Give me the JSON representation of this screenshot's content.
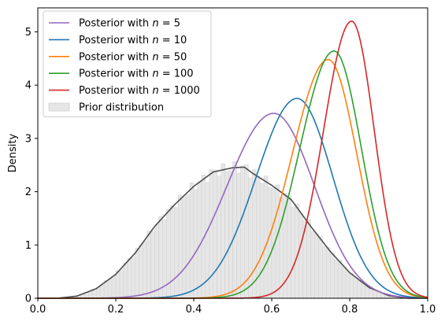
{
  "chart_data": {
    "type": "line",
    "title": "",
    "xlabel": "",
    "ylabel": "Density",
    "xlim": [
      0.0,
      1.0
    ],
    "ylim": [
      0,
      5.45
    ],
    "xticks": [
      0.0,
      0.2,
      0.4,
      0.6,
      0.8,
      1.0
    ],
    "xtick_labels": [
      "0.0",
      "0.2",
      "0.4",
      "0.6",
      "0.8",
      "1.0"
    ],
    "yticks": [
      0,
      1,
      2,
      3,
      4,
      5
    ],
    "ytick_labels": [
      "0",
      "1",
      "2",
      "3",
      "4",
      "5"
    ],
    "grid": false,
    "legend_position": "top-left",
    "series": [
      {
        "name": "Posterior with n = 5",
        "legend_prefix": "Posterior with ",
        "legend_var": "n",
        "legend_suffix": " = 5",
        "color": "#9467bd",
        "mode": 0.605,
        "peak": 3.47,
        "sigma_left": 0.12,
        "sigma_right": 0.105
      },
      {
        "name": "Posterior with n = 10",
        "legend_prefix": "Posterior with ",
        "legend_var": "n",
        "legend_suffix": " = 10",
        "color": "#1f77b4",
        "mode": 0.665,
        "peak": 3.75,
        "sigma_left": 0.105,
        "sigma_right": 0.092
      },
      {
        "name": "Posterior with n = 50",
        "legend_prefix": "Posterior with ",
        "legend_var": "n",
        "legend_suffix": " = 50",
        "color": "#ff7f0e",
        "mode": 0.745,
        "peak": 4.48,
        "sigma_left": 0.092,
        "sigma_right": 0.073
      },
      {
        "name": "Posterior with n = 100",
        "legend_prefix": "Posterior with ",
        "legend_var": "n",
        "legend_suffix": " = 100",
        "color": "#2ca02c",
        "mode": 0.76,
        "peak": 4.64,
        "sigma_left": 0.088,
        "sigma_right": 0.07
      },
      {
        "name": "Posterior with n = 1000",
        "legend_prefix": "Posterior with ",
        "legend_var": "n",
        "legend_suffix": " = 1000",
        "color": "#d62728",
        "mode": 0.805,
        "peak": 5.2,
        "sigma_left": 0.072,
        "sigma_right": 0.058
      }
    ],
    "prior": {
      "name": "Prior distribution",
      "fill_color": "#e6e6e6",
      "edge_color": "#d0d0d0",
      "curve_color": "#4d4d4d",
      "curve_points": [
        [
          0.0,
          0.0
        ],
        [
          0.05,
          0.0
        ],
        [
          0.1,
          0.04
        ],
        [
          0.15,
          0.18
        ],
        [
          0.2,
          0.45
        ],
        [
          0.25,
          0.85
        ],
        [
          0.3,
          1.35
        ],
        [
          0.35,
          1.75
        ],
        [
          0.4,
          2.1
        ],
        [
          0.45,
          2.37
        ],
        [
          0.5,
          2.45
        ],
        [
          0.53,
          2.46
        ],
        [
          0.55,
          2.35
        ],
        [
          0.6,
          2.12
        ],
        [
          0.65,
          1.85
        ],
        [
          0.7,
          1.35
        ],
        [
          0.75,
          0.88
        ],
        [
          0.8,
          0.48
        ],
        [
          0.85,
          0.2
        ],
        [
          0.9,
          0.05
        ],
        [
          0.95,
          0.0
        ],
        [
          1.0,
          0.0
        ]
      ]
    }
  }
}
